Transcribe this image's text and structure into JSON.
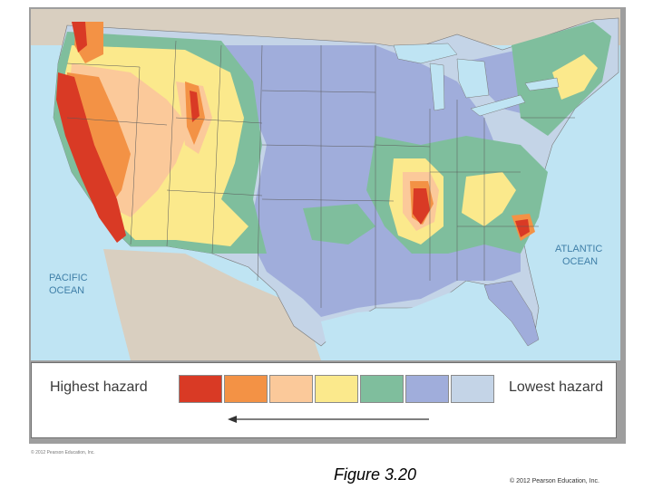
{
  "map": {
    "pacific_label": [
      "PACIFIC",
      "OCEAN"
    ],
    "atlantic_label": [
      "ATLANTIC",
      "OCEAN"
    ],
    "hazard_colors": {
      "highest": "#d93a25",
      "high": "#f39245",
      "moderate_high": "#fbc99a",
      "moderate": "#fbe98c",
      "moderate_low": "#7fbe9d",
      "low": "#a0addb",
      "lowest": "#c4d4e7"
    },
    "land_color": "#d9cfc0",
    "water_color": "#bfe4f3"
  },
  "legend": {
    "highest_label": "Highest  hazard",
    "lowest_label": "Lowest hazard",
    "swatches": [
      {
        "color": "#d93a25"
      },
      {
        "color": "#f39245"
      },
      {
        "color": "#fbc99a"
      },
      {
        "color": "#fbe98c"
      },
      {
        "color": "#7fbe9d"
      },
      {
        "color": "#a0addb"
      },
      {
        "color": "#c4d4e7"
      }
    ]
  },
  "small_copyright": "© 2012 Pearson Education, Inc.",
  "figure_title": "Figure 3.20",
  "copyright": "© 2012 Pearson Education, Inc."
}
